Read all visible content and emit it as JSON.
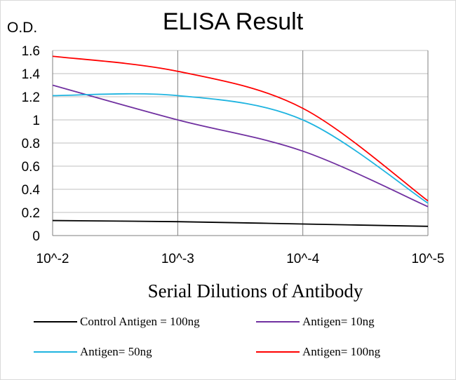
{
  "chart_data": {
    "type": "line",
    "title": "ELISA Result",
    "ylabel": "O.D.",
    "xlabel": "Serial Dilutions of Antibody",
    "x": [
      "10^-2",
      "10^-3",
      "10^-4",
      "10^-5"
    ],
    "ylim": [
      0,
      1.6
    ],
    "yticks": [
      "0",
      "0.2",
      "0.4",
      "0.6",
      "0.8",
      "1",
      "1.2",
      "1.4",
      "1.6"
    ],
    "grid": "vertical and horizontal",
    "legend_position": "bottom",
    "series": [
      {
        "name": "Control Antigen = 100ng",
        "color": "#000000",
        "values": [
          0.13,
          0.12,
          0.1,
          0.08
        ]
      },
      {
        "name": "Antigen= 10ng",
        "color": "#7030a0",
        "values": [
          1.3,
          1.0,
          0.73,
          0.25
        ]
      },
      {
        "name": "Antigen= 50ng",
        "color": "#1fb4e0",
        "values": [
          1.21,
          1.21,
          1.0,
          0.28
        ]
      },
      {
        "name": "Antigen= 100ng",
        "color": "#ff0000",
        "values": [
          1.55,
          1.42,
          1.1,
          0.3
        ]
      }
    ]
  }
}
